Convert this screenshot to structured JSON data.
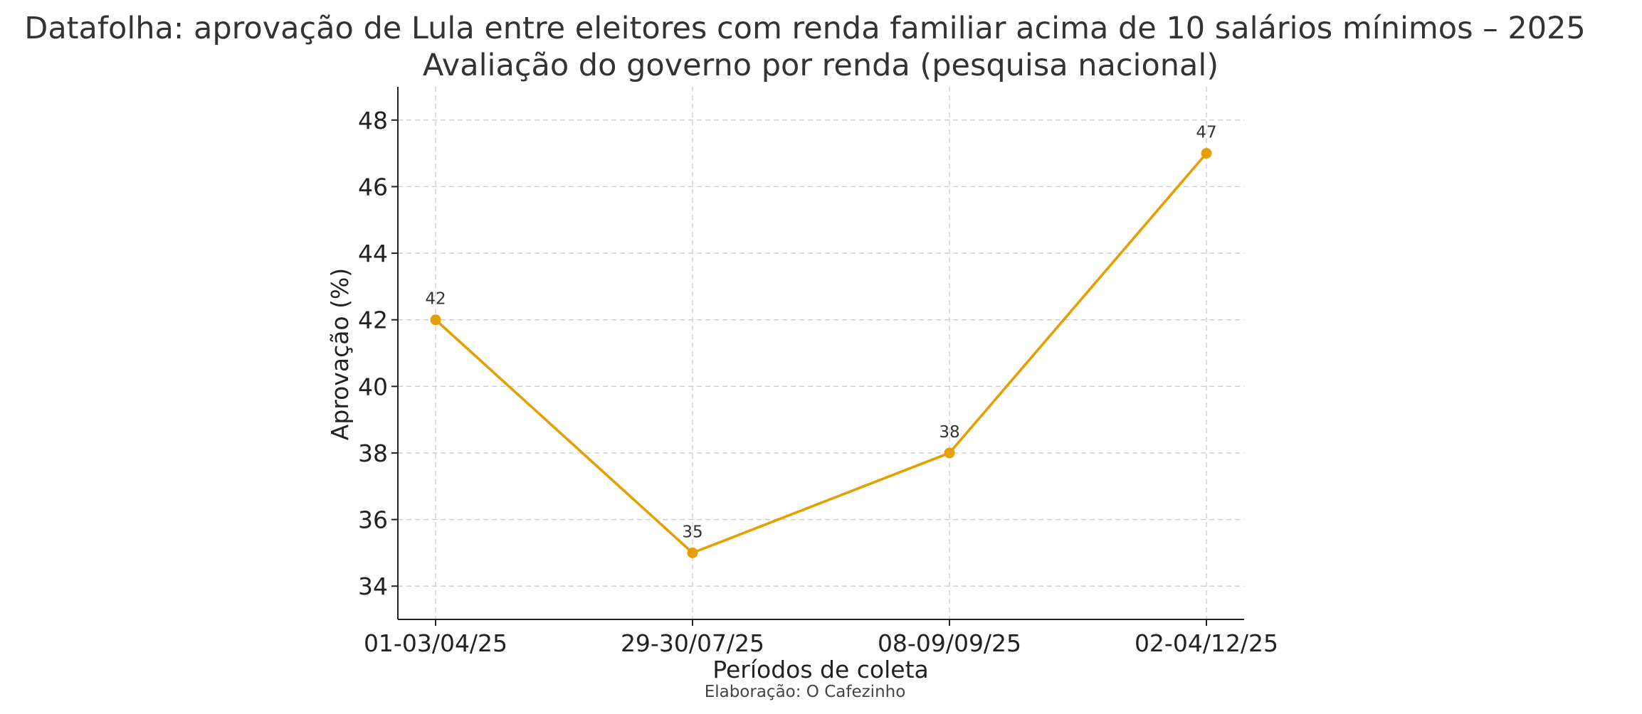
{
  "chart_data": {
    "type": "line",
    "title": "Datafolha: aprovação de Lula entre eleitores com renda familiar acima de 10 salários mínimos – 2025",
    "subtitle": "Avaliação do governo por renda (pesquisa nacional)",
    "xlabel": "Períodos de coleta",
    "ylabel": "Aprovação (%)",
    "categories": [
      "01-03/04/25",
      "29-30/07/25",
      "08-09/09/25",
      "02-04/12/25"
    ],
    "series": [
      {
        "values": [
          42,
          35,
          38,
          47
        ],
        "color": "#E69F00"
      }
    ],
    "data_labels": [
      "42",
      "35",
      "38",
      "47"
    ],
    "ylim": [
      33,
      49
    ],
    "yticks": [
      34,
      36,
      38,
      40,
      42,
      44,
      46,
      48
    ],
    "grid": true,
    "legend": "none",
    "credit": "Elaboração: O Cafezinho"
  }
}
